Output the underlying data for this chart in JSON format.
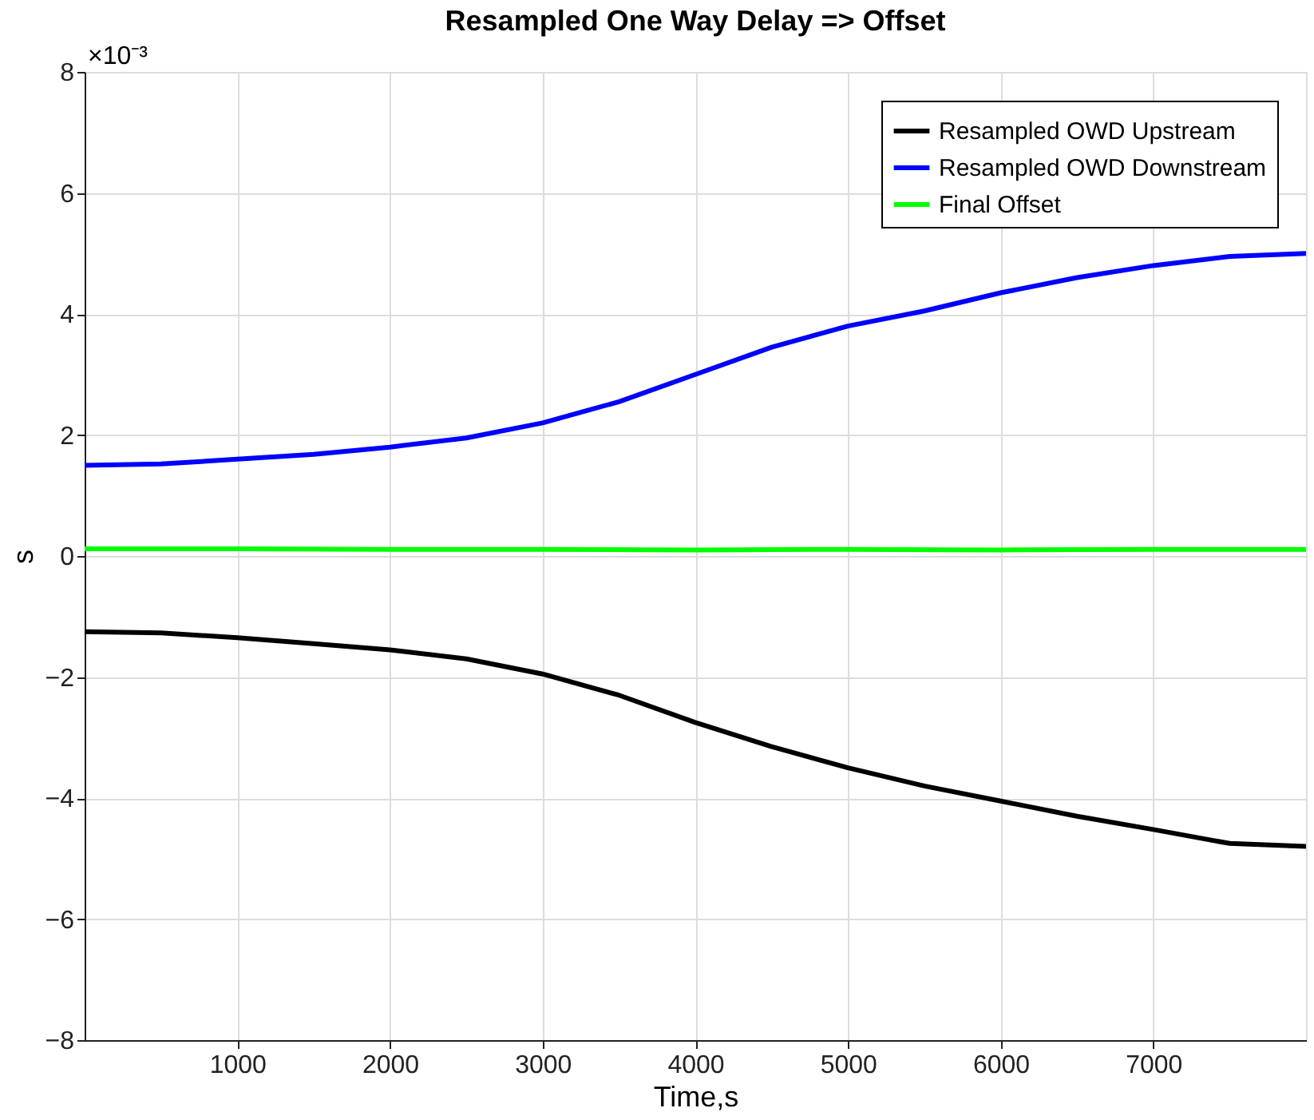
{
  "chart_data": {
    "type": "line",
    "title": "Resampled One Way Delay => Offset",
    "xlabel": "Time,s",
    "ylabel": "s",
    "annotations": [
      "×10⁻³"
    ],
    "xlim": [
      0,
      8000
    ],
    "xticks": [
      1000,
      2000,
      3000,
      4000,
      5000,
      6000,
      7000
    ],
    "ylim": [
      -8,
      8
    ],
    "yticks": [
      -8,
      -6,
      -4,
      -2,
      0,
      2,
      4,
      6,
      8
    ],
    "grid": true,
    "legend": "top right",
    "marker": "none",
    "line_style": "solid",
    "series": [
      {
        "name": "Resampled OWD Upstream",
        "color": "#000000",
        "x": [
          0,
          500,
          1000,
          1500,
          2000,
          2500,
          3000,
          3500,
          4000,
          4500,
          5000,
          5500,
          6000,
          6500,
          7000,
          7500,
          8000
        ],
        "values": [
          -1.25,
          -1.27,
          -1.35,
          -1.45,
          -1.55,
          -1.7,
          -1.95,
          -2.3,
          -2.75,
          -3.15,
          -3.5,
          -3.8,
          -4.05,
          -4.3,
          -4.52,
          -4.75,
          -4.8
        ]
      },
      {
        "name": "Resampled OWD Downstream",
        "color": "#0000ff",
        "x": [
          0,
          500,
          1000,
          1500,
          2000,
          2500,
          3000,
          3500,
          4000,
          4500,
          5000,
          5500,
          6000,
          6500,
          7000,
          7500,
          8000
        ],
        "values": [
          1.5,
          1.52,
          1.6,
          1.68,
          1.8,
          1.95,
          2.2,
          2.55,
          3.0,
          3.45,
          3.8,
          4.05,
          4.35,
          4.6,
          4.8,
          4.95,
          5.0
        ]
      },
      {
        "name": "Final Offset",
        "color": "#00ff00",
        "x": [
          0,
          1000,
          2000,
          3000,
          4000,
          5000,
          6000,
          7000,
          8000
        ],
        "values": [
          0.12,
          0.12,
          0.11,
          0.11,
          0.1,
          0.11,
          0.1,
          0.11,
          0.11
        ]
      }
    ]
  }
}
